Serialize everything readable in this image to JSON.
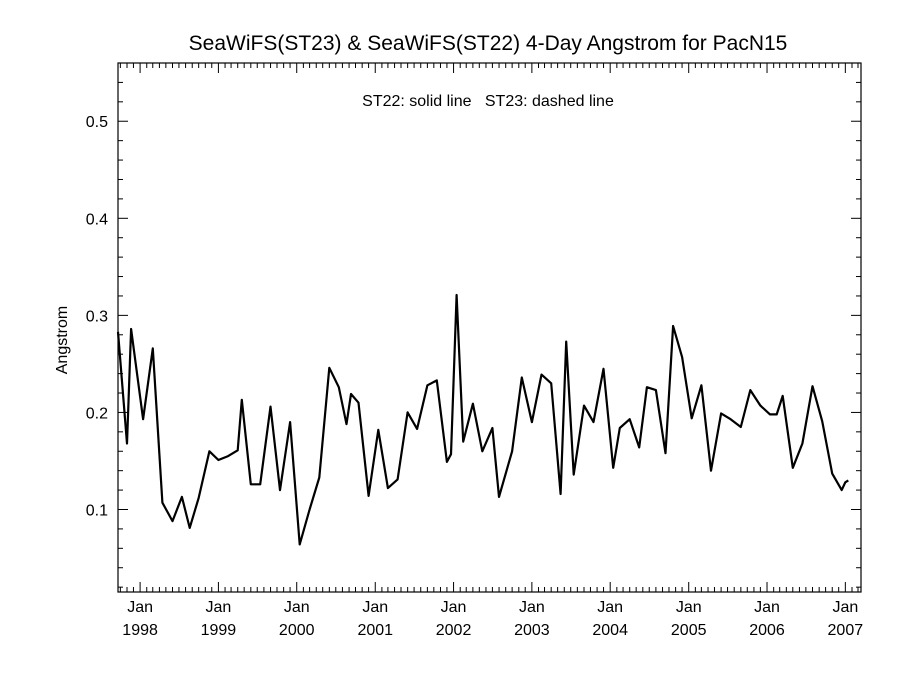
{
  "chart_data": {
    "type": "line",
    "title": "SeaWiFS(ST23) & SeaWiFS(ST22) 4-Day Angstrom for PacN15",
    "ylabel": "Angstrom",
    "xlabel": "",
    "annotation": "ST22: solid line   ST23: dashed line",
    "xlim": [
      "1997-09-20",
      "2007-03-15"
    ],
    "ylim": [
      0.015,
      0.56
    ],
    "yticks": [
      {
        "value": 0.1,
        "label": "0.1"
      },
      {
        "value": 0.2,
        "label": "0.2"
      },
      {
        "value": 0.3,
        "label": "0.3"
      },
      {
        "value": 0.4,
        "label": "0.4"
      },
      {
        "value": 0.5,
        "label": "0.5"
      }
    ],
    "xticks": [
      {
        "date": "1998-01-01",
        "month": "Jan",
        "year": "1998"
      },
      {
        "date": "1999-01-01",
        "month": "Jan",
        "year": "1999"
      },
      {
        "date": "2000-01-01",
        "month": "Jan",
        "year": "2000"
      },
      {
        "date": "2001-01-01",
        "month": "Jan",
        "year": "2001"
      },
      {
        "date": "2002-01-01",
        "month": "Jan",
        "year": "2002"
      },
      {
        "date": "2003-01-01",
        "month": "Jan",
        "year": "2003"
      },
      {
        "date": "2004-01-01",
        "month": "Jan",
        "year": "2004"
      },
      {
        "date": "2005-01-01",
        "month": "Jan",
        "year": "2005"
      },
      {
        "date": "2006-01-01",
        "month": "Jan",
        "year": "2006"
      },
      {
        "date": "2007-01-01",
        "month": "Jan",
        "year": "2007"
      }
    ],
    "series": [
      {
        "name": "ST22",
        "style": "solid",
        "color": "#000000",
        "points": [
          [
            "1997-09-20",
            0.283
          ],
          [
            "1997-11-01",
            0.168
          ],
          [
            "1997-11-20",
            0.286
          ],
          [
            "1998-01-15",
            0.193
          ],
          [
            "1998-03-01",
            0.266
          ],
          [
            "1998-04-15",
            0.107
          ],
          [
            "1998-06-01",
            0.088
          ],
          [
            "1998-07-15",
            0.113
          ],
          [
            "1998-08-20",
            0.081
          ],
          [
            "1998-10-01",
            0.112
          ],
          [
            "1998-11-20",
            0.16
          ],
          [
            "1999-01-01",
            0.151
          ],
          [
            "1999-02-15",
            0.155
          ],
          [
            "1999-04-01",
            0.161
          ],
          [
            "1999-04-20",
            0.213
          ],
          [
            "1999-06-01",
            0.126
          ],
          [
            "1999-07-15",
            0.126
          ],
          [
            "1999-09-01",
            0.206
          ],
          [
            "1999-10-15",
            0.12
          ],
          [
            "1999-12-01",
            0.19
          ],
          [
            "2000-01-15",
            0.064
          ],
          [
            "2000-03-01",
            0.1
          ],
          [
            "2000-04-15",
            0.133
          ],
          [
            "2000-06-01",
            0.246
          ],
          [
            "2000-07-15",
            0.226
          ],
          [
            "2000-08-20",
            0.188
          ],
          [
            "2000-09-10",
            0.219
          ],
          [
            "2000-10-15",
            0.21
          ],
          [
            "2000-12-01",
            0.114
          ],
          [
            "2001-01-15",
            0.182
          ],
          [
            "2001-03-01",
            0.122
          ],
          [
            "2001-04-15",
            0.131
          ],
          [
            "2001-06-01",
            0.2
          ],
          [
            "2001-07-15",
            0.183
          ],
          [
            "2001-09-01",
            0.228
          ],
          [
            "2001-10-15",
            0.233
          ],
          [
            "2001-12-01",
            0.149
          ],
          [
            "2001-12-20",
            0.157
          ],
          [
            "2002-01-15",
            0.321
          ],
          [
            "2002-02-15",
            0.17
          ],
          [
            "2002-04-01",
            0.209
          ],
          [
            "2002-05-15",
            0.16
          ],
          [
            "2002-07-01",
            0.184
          ],
          [
            "2002-08-01",
            0.113
          ],
          [
            "2002-10-01",
            0.16
          ],
          [
            "2002-11-15",
            0.236
          ],
          [
            "2003-01-01",
            0.19
          ],
          [
            "2003-02-15",
            0.239
          ],
          [
            "2003-04-01",
            0.23
          ],
          [
            "2003-05-15",
            0.116
          ],
          [
            "2003-06-10",
            0.273
          ],
          [
            "2003-07-15",
            0.136
          ],
          [
            "2003-09-01",
            0.207
          ],
          [
            "2003-10-15",
            0.19
          ],
          [
            "2003-12-01",
            0.245
          ],
          [
            "2004-01-15",
            0.143
          ],
          [
            "2004-02-15",
            0.184
          ],
          [
            "2004-04-01",
            0.193
          ],
          [
            "2004-05-15",
            0.164
          ],
          [
            "2004-06-20",
            0.226
          ],
          [
            "2004-08-01",
            0.223
          ],
          [
            "2004-09-15",
            0.158
          ],
          [
            "2004-10-20",
            0.289
          ],
          [
            "2004-12-01",
            0.257
          ],
          [
            "2005-01-15",
            0.194
          ],
          [
            "2005-03-01",
            0.228
          ],
          [
            "2005-04-15",
            0.14
          ],
          [
            "2005-06-01",
            0.199
          ],
          [
            "2005-07-15",
            0.193
          ],
          [
            "2005-09-01",
            0.185
          ],
          [
            "2005-10-15",
            0.223
          ],
          [
            "2005-12-01",
            0.207
          ],
          [
            "2006-01-15",
            0.198
          ],
          [
            "2006-02-15",
            0.198
          ],
          [
            "2006-03-15",
            0.217
          ],
          [
            "2006-05-01",
            0.143
          ],
          [
            "2006-06-15",
            0.168
          ],
          [
            "2006-08-01",
            0.227
          ],
          [
            "2006-09-15",
            0.191
          ],
          [
            "2006-11-01",
            0.137
          ],
          [
            "2006-12-15",
            0.12
          ],
          [
            "2007-01-01",
            0.128
          ],
          [
            "2007-01-15",
            0.13
          ]
        ]
      }
    ]
  }
}
